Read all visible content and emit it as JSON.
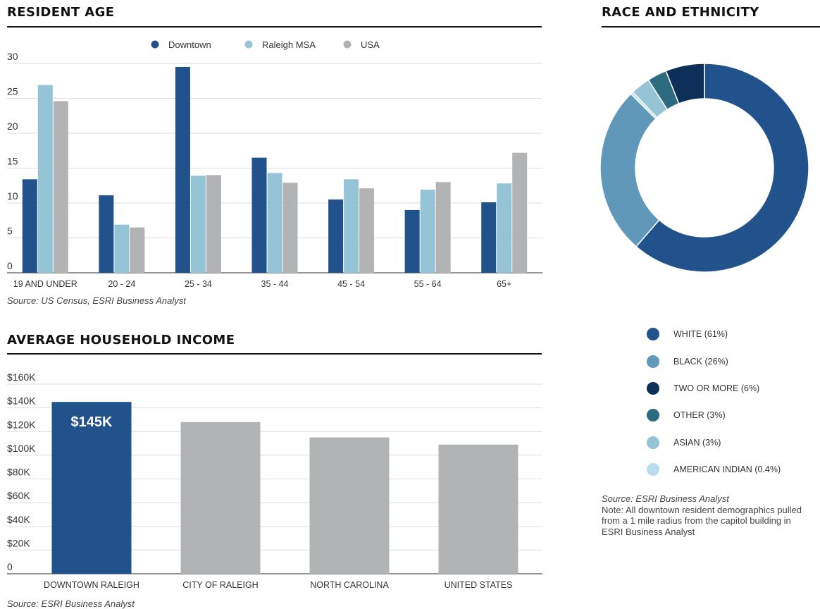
{
  "resident_age": {
    "title": "RESIDENT AGE",
    "source": "Source: US Census, ESRI Business Analyst"
  },
  "household_income": {
    "title": "AVERAGE HOUSEHOLD INCOME",
    "source": "Source: ESRI Business Analyst",
    "highlight_label": "$145K"
  },
  "race": {
    "title": "RACE AND ETHNICITY",
    "source": "Source: ESRI Business Analyst",
    "note": "Note: All downtown resident demographics pulled from a 1 mile radius from the capitol building in ESRI Business Analyst"
  },
  "chart_data": [
    {
      "type": "bar",
      "title": "RESIDENT AGE",
      "categories": [
        "19 AND UNDER",
        "20 - 24",
        "25 - 34",
        "35 - 44",
        "45 - 54",
        "55 - 64",
        "65+"
      ],
      "series": [
        {
          "name": "Downtown",
          "color": "#22528c",
          "values": [
            13.4,
            11.1,
            29.5,
            16.5,
            10.5,
            9.0,
            10.1
          ]
        },
        {
          "name": "Raleigh MSA",
          "color": "#95c4d7",
          "values": [
            26.9,
            6.9,
            13.9,
            14.3,
            13.4,
            11.9,
            12.8
          ]
        },
        {
          "name": "USA",
          "color": "#b2b3b5",
          "values": [
            24.6,
            6.5,
            14.0,
            12.9,
            12.1,
            13.0,
            17.2
          ]
        }
      ],
      "yticks": [
        "0",
        "5",
        "10",
        "15",
        "20",
        "25",
        "30"
      ],
      "ylim": [
        0,
        30
      ],
      "grid": true,
      "legend": "top-center"
    },
    {
      "type": "bar",
      "title": "AVERAGE HOUSEHOLD INCOME",
      "categories": [
        "DOWNTOWN RALEIGH",
        "CITY OF RALEIGH",
        "NORTH CAROLINA",
        "UNITED STATES"
      ],
      "values": [
        145,
        128,
        115,
        109
      ],
      "colors": [
        "#22528c",
        "#b2b3b5",
        "#b2b3b5",
        "#b2b3b5"
      ],
      "yticks": [
        "0",
        "$20K",
        "$40K",
        "$60K",
        "$80K",
        "$100K",
        "$120K",
        "$140K",
        "$160K"
      ],
      "ylim": [
        0,
        160
      ],
      "grid": true
    },
    {
      "type": "pie",
      "title": "RACE AND ETHNICITY",
      "donut": true,
      "slices": [
        {
          "label": "WHITE (61%)",
          "value": 61,
          "color": "#22528c"
        },
        {
          "label": "BLACK (26%)",
          "value": 26,
          "color": "#5f98b9"
        },
        {
          "label": "AMERICAN INDIAN (0.4%)",
          "value": 0.4,
          "color": "#b9dcef"
        },
        {
          "label": "ASIAN (3%)",
          "value": 3,
          "color": "#95c4d7"
        },
        {
          "label": "OTHER (3%)",
          "value": 3,
          "color": "#2d6b80"
        },
        {
          "label": "TWO OR MORE (6%)",
          "value": 6,
          "color": "#0e2f58"
        }
      ],
      "legend_order": [
        "WHITE (61%)",
        "BLACK (26%)",
        "TWO OR MORE (6%)",
        "OTHER (3%)",
        "ASIAN (3%)",
        "AMERICAN INDIAN (0.4%)"
      ]
    }
  ]
}
